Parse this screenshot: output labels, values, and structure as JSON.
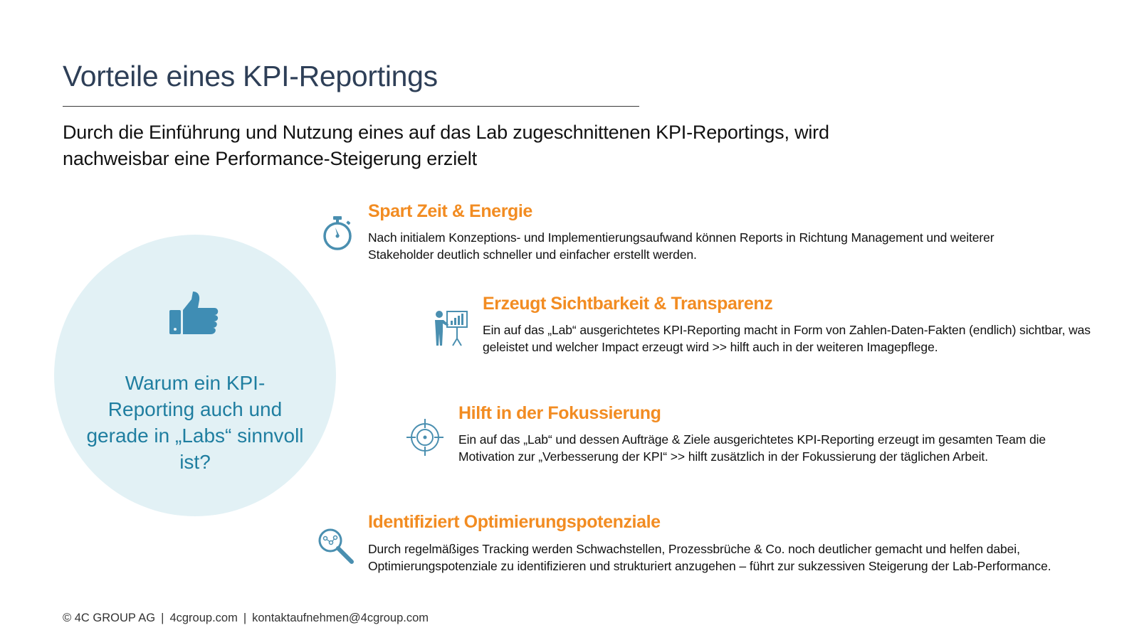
{
  "slide": {
    "title": "Vorteile eines KPI-Reportings",
    "subtitle": "Durch die Einführung und Nutzung eines auf das Lab zugeschnittenen KPI-Reportings, wird nachweisbar eine Performance-Steigerung erzielt"
  },
  "circle": {
    "icon": "thumbs-up-icon",
    "text": "Warum ein KPI-Reporting auch und gerade in „Labs“ sinnvoll ist?"
  },
  "benefits": [
    {
      "icon": "stopwatch-icon",
      "title": "Spart Zeit & Energie",
      "text": "Nach initialem Konzeptions- und Implementierungsaufwand können Reports in Richtung Management und weiterer Stakeholder deutlich schneller und einfacher erstellt werden."
    },
    {
      "icon": "presentation-chart-icon",
      "title": "Erzeugt Sichtbarkeit & Transparenz",
      "text": "Ein auf das „Lab“ ausgerichtetes KPI-Reporting macht in Form von Zahlen-Daten-Fakten (endlich) sichtbar, was geleistet und welcher Impact erzeugt wird >> hilft auch in der weiteren Imagepflege."
    },
    {
      "icon": "crosshair-target-icon",
      "title": "Hilft in der Fokussierung",
      "text": "Ein auf das „Lab“ und dessen Aufträge & Ziele ausgerichtetes KPI-Reporting erzeugt im gesamten Team die Motivation zur „Verbesserung der KPI“ >> hilft zusätzlich in der Fokussierung der täglichen Arbeit."
    },
    {
      "icon": "magnifier-icon",
      "title": "Identifiziert Optimierungspotenziale",
      "text": "Durch regelmäßiges Tracking werden Schwachstellen, Prozessbrüche & Co. noch deutlicher gemacht und helfen dabei, Optimierungspotenziale zu identifizieren und strukturiert anzugehen – führt zur sukzessiven Steigerung der Lab-Performance."
    }
  ],
  "footer": {
    "copyright": "© 4C GROUP AG",
    "website": "4cgroup.com",
    "email": "kontaktaufnehmen@4cgroup.com"
  },
  "colors": {
    "title": "#2e3f57",
    "accent_orange": "#f28c22",
    "accent_blue": "#1f7ea0",
    "icon_blue": "#4a8fb0",
    "circle_fill": "#e2f1f5"
  }
}
